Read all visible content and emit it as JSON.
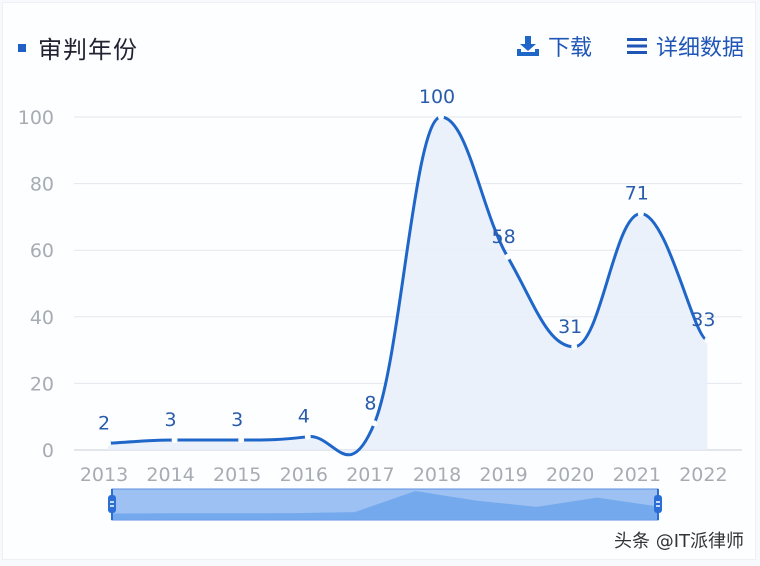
{
  "header": {
    "title": "审判年份",
    "download_label": "下载",
    "detail_label": "详细数据"
  },
  "icons": {
    "download": "download-icon",
    "detail": "list-icon",
    "bullet": "square-bullet-icon"
  },
  "colors": {
    "accent": "#1f66c9",
    "line": "#1f66c9",
    "area": "#e9f0fb",
    "grid": "#e3e7ee",
    "axis_text": "#a7acb3",
    "slider_fill": "#9cc1f2",
    "slider_data": "#6fa4ec"
  },
  "chart_data": {
    "type": "area",
    "title": "审判年份",
    "categories": [
      "2013",
      "2014",
      "2015",
      "2016",
      "2017",
      "2018",
      "2019",
      "2020",
      "2021",
      "2022"
    ],
    "values": [
      2,
      3,
      3,
      4,
      8,
      100,
      58,
      31,
      71,
      33
    ],
    "xlabel": "",
    "ylabel": "",
    "ylim": [
      0,
      100
    ],
    "yticks": [
      0,
      20,
      40,
      60,
      80,
      100
    ],
    "grid": true,
    "smooth": true,
    "data_labels": true,
    "legend": null,
    "data_zoom": {
      "start": "2013",
      "end": "2022"
    }
  },
  "watermark": "头条 @IT派律师"
}
